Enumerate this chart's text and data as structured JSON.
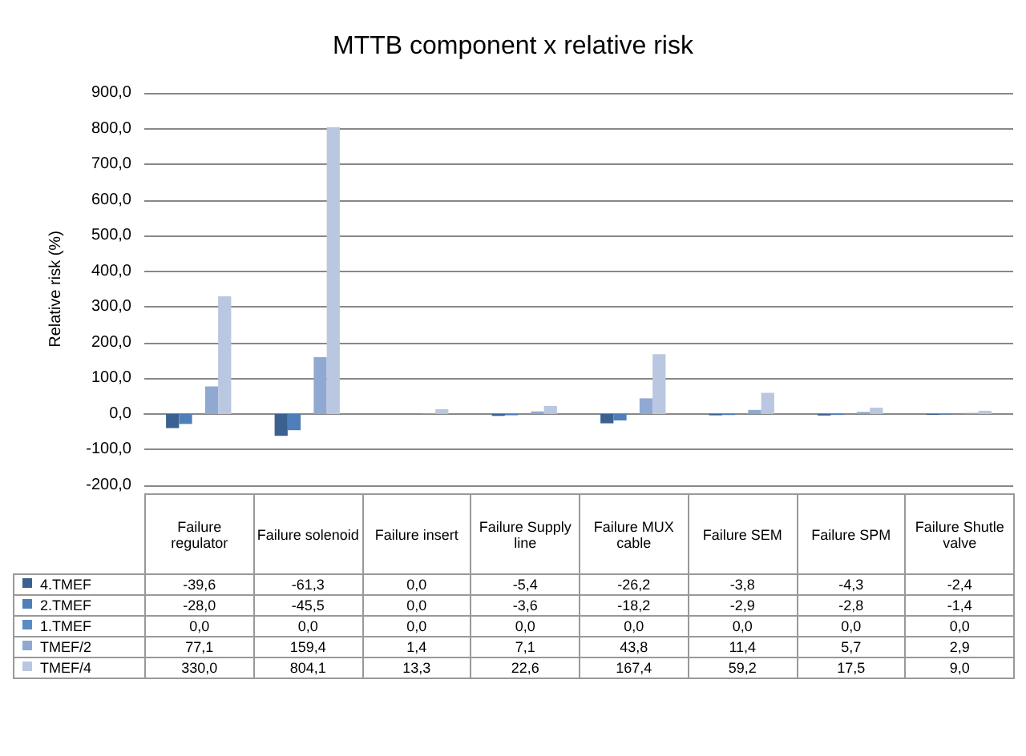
{
  "chart_data": {
    "type": "bar",
    "title": "MTTB component x relative risk",
    "ylabel": "Relative risk (%)",
    "categories": [
      "Failure regulator",
      "Failure solenoid",
      "Failure insert",
      "Failure Supply line",
      "Failure MUX cable",
      "Failure SEM",
      "Failure SPM",
      "Failure Shutle valve"
    ],
    "series": [
      {
        "name": "4.TMEF",
        "color": "#3b6191",
        "values": [
          -39.6,
          -61.3,
          0.0,
          -5.4,
          -26.2,
          -3.8,
          -4.3,
          -2.4
        ],
        "value_labels": [
          "-39,6",
          "-61,3",
          "0,0",
          "-5,4",
          "-26,2",
          "-3,8",
          "-4,3",
          "-2,4"
        ]
      },
      {
        "name": "2.TMEF",
        "color": "#4f7fb8",
        "values": [
          -28.0,
          -45.5,
          0.0,
          -3.6,
          -18.2,
          -2.9,
          -2.8,
          -1.4
        ],
        "value_labels": [
          "-28,0",
          "-45,5",
          "0,0",
          "-3,6",
          "-18,2",
          "-2,9",
          "-2,8",
          "-1,4"
        ]
      },
      {
        "name": "1.TMEF",
        "color": "#5b8cc6",
        "values": [
          0.0,
          0.0,
          0.0,
          0.0,
          0.0,
          0.0,
          0.0,
          0.0
        ],
        "value_labels": [
          "0,0",
          "0,0",
          "0,0",
          "0,0",
          "0,0",
          "0,0",
          "0,0",
          "0,0"
        ]
      },
      {
        "name": "TMEF/2",
        "color": "#8fa9d3",
        "values": [
          77.1,
          159.4,
          1.4,
          7.1,
          43.8,
          11.4,
          5.7,
          2.9
        ],
        "value_labels": [
          "77,1",
          "159,4",
          "1,4",
          "7,1",
          "43,8",
          "11,4",
          "5,7",
          "2,9"
        ]
      },
      {
        "name": "TMEF/4",
        "color": "#bac7e1",
        "values": [
          330.0,
          804.1,
          13.3,
          22.6,
          167.4,
          59.2,
          17.5,
          9.0
        ],
        "value_labels": [
          "330,0",
          "804,1",
          "13,3",
          "22,6",
          "167,4",
          "59,2",
          "17,5",
          "9,0"
        ]
      }
    ],
    "ylim": [
      -200,
      900
    ],
    "yticks": [
      {
        "value": -200,
        "label": "-200,0"
      },
      {
        "value": -100,
        "label": "-100,0"
      },
      {
        "value": 0,
        "label": "0,0"
      },
      {
        "value": 100,
        "label": "100,0"
      },
      {
        "value": 200,
        "label": "200,0"
      },
      {
        "value": 300,
        "label": "300,0"
      },
      {
        "value": 400,
        "label": "400,0"
      },
      {
        "value": 500,
        "label": "500,0"
      },
      {
        "value": 600,
        "label": "600,0"
      },
      {
        "value": 700,
        "label": "700,0"
      },
      {
        "value": 800,
        "label": "800,0"
      },
      {
        "value": 900,
        "label": "900,0"
      }
    ],
    "grid": "y",
    "legend": "bottom"
  }
}
